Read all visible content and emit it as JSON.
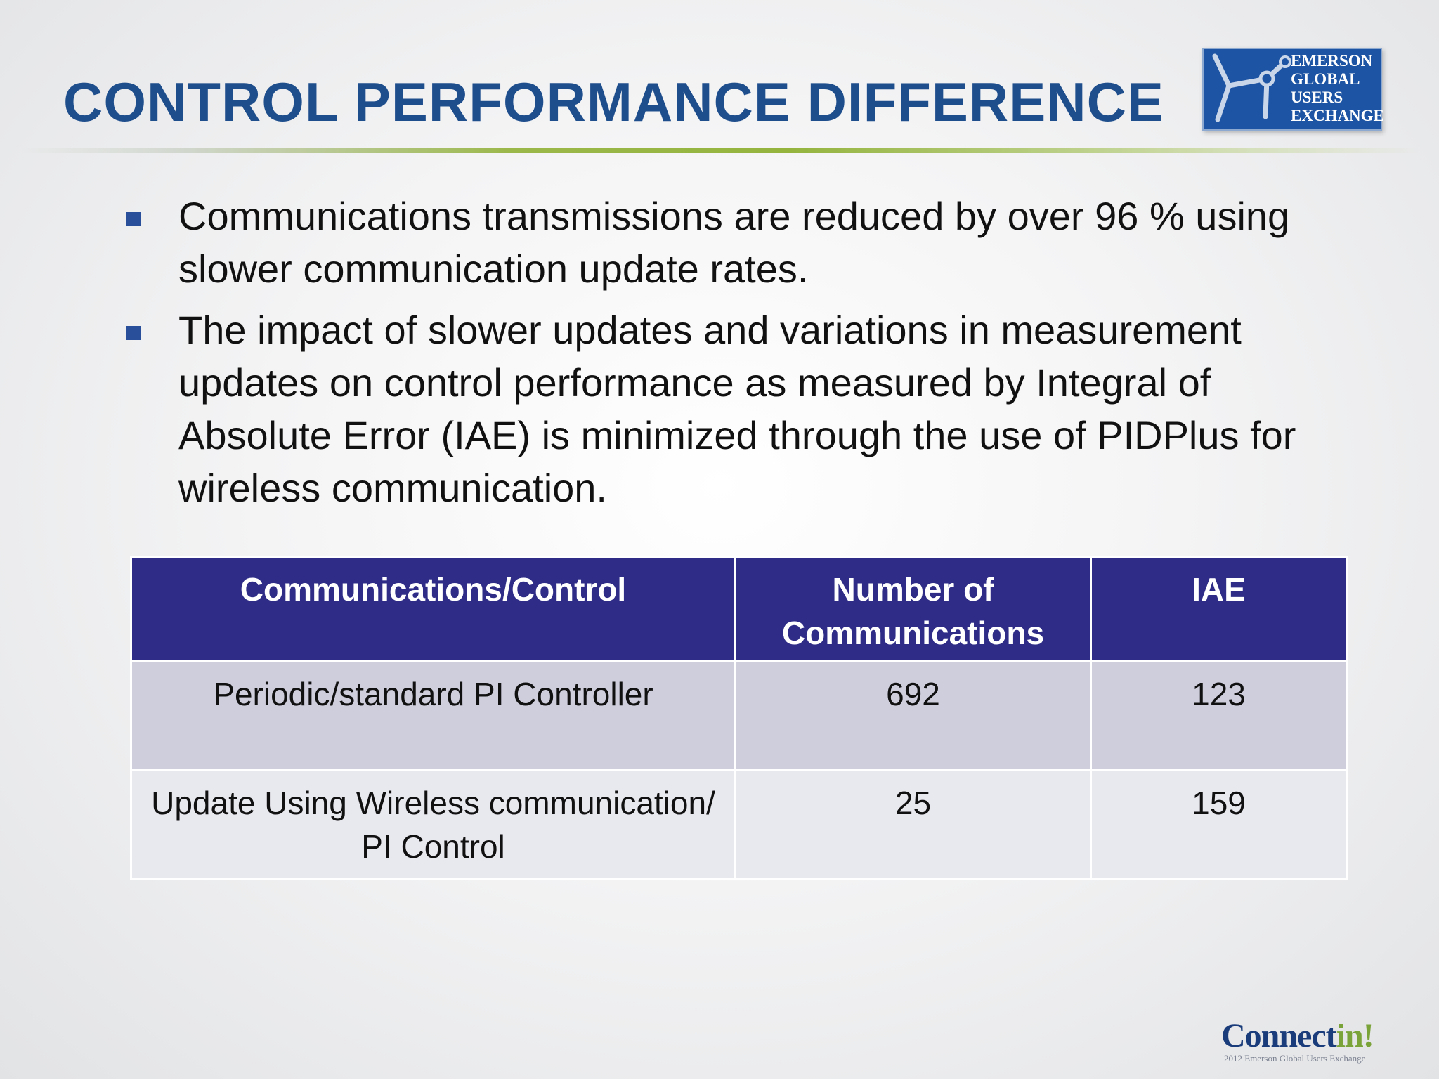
{
  "title": "CONTROL PERFORMANCE DIFFERENCE",
  "logo": {
    "lines": [
      "Emerson",
      "Global",
      "Users",
      "Exchange"
    ],
    "color": "#1d54a3"
  },
  "bullets": [
    "Communications transmissions are reduced by over 96 % using slower communication update rates.",
    "The impact of slower updates and variations in measurement updates on control performance as measured by Integral of Absolute Error (IAE) is minimized through the use of PIDPlus for wireless communication."
  ],
  "table": {
    "headers": [
      "Communications/Control",
      "Number of Communications",
      "IAE"
    ],
    "rows": [
      [
        "Periodic/standard PI Controller",
        "692",
        "123"
      ],
      [
        "Update Using Wireless communication/ PI Control",
        "25",
        "159"
      ]
    ],
    "header_color": "#2e2c86"
  },
  "footer": {
    "brand": "Connect",
    "brand_accent": "in!",
    "subtitle": "2012 Emerson Global Users Exchange"
  },
  "colors": {
    "title": "#1f4e8c",
    "bullet_marker": "#2a4f9a",
    "rule_green": "#94b43e"
  }
}
